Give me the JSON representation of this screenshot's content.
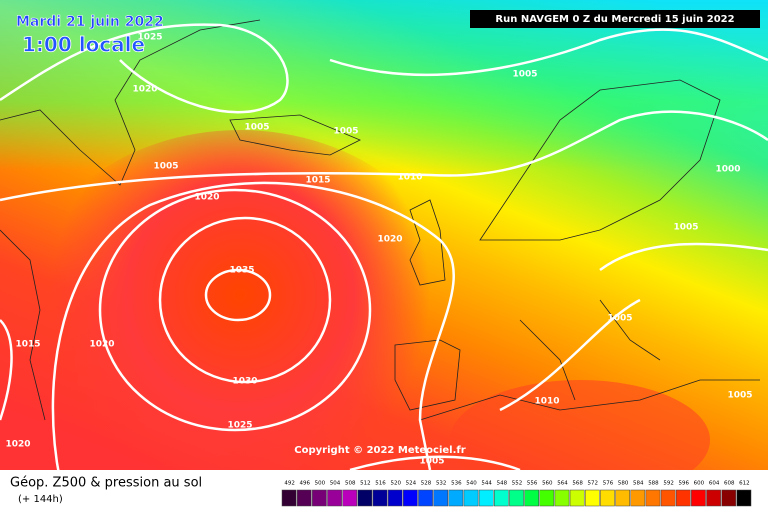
{
  "header": {
    "date": "Mardi 21 juin 2022",
    "time": "1:00 locale",
    "run": "Run NAVGEM 0 Z du Mercredi 15 juin 2022"
  },
  "isobar_labels": [
    "1025",
    "1020",
    "1005",
    "1005",
    "1005",
    "1015",
    "1010",
    "1020",
    "1020",
    "1035",
    "1015",
    "1020",
    "1030",
    "1025",
    "1020",
    "1005",
    "1010",
    "1005",
    "1005",
    "1000",
    "1005",
    "1005"
  ],
  "copyright": "Copyright © 2022 Meteociel.fr",
  "footer": {
    "title": "Géop. Z500 & pression au sol",
    "lead": "(+ 144h)"
  },
  "legend": [
    {
      "label": 492,
      "color": "#330033"
    },
    {
      "label": 496,
      "color": "#550055"
    },
    {
      "label": 500,
      "color": "#770077"
    },
    {
      "label": 504,
      "color": "#990099"
    },
    {
      "label": 508,
      "color": "#bb00bb"
    },
    {
      "label": 512,
      "color": "#000066"
    },
    {
      "label": 516,
      "color": "#000099"
    },
    {
      "label": 520,
      "color": "#0000cc"
    },
    {
      "label": 524,
      "color": "#0000ff"
    },
    {
      "label": 528,
      "color": "#0044ff"
    },
    {
      "label": 532,
      "color": "#0077ff"
    },
    {
      "label": 536,
      "color": "#00aaff"
    },
    {
      "label": 540,
      "color": "#00ccff"
    },
    {
      "label": 544,
      "color": "#00eeff"
    },
    {
      "label": 548,
      "color": "#00ffcc"
    },
    {
      "label": 552,
      "color": "#00ff88"
    },
    {
      "label": 556,
      "color": "#00ff44"
    },
    {
      "label": 560,
      "color": "#44ff00"
    },
    {
      "label": 564,
      "color": "#88ff00"
    },
    {
      "label": 568,
      "color": "#ccff00"
    },
    {
      "label": 572,
      "color": "#ffff00"
    },
    {
      "label": 576,
      "color": "#ffdd00"
    },
    {
      "label": 580,
      "color": "#ffbb00"
    },
    {
      "label": 584,
      "color": "#ff9900"
    },
    {
      "label": 588,
      "color": "#ff7700"
    },
    {
      "label": 592,
      "color": "#ff5500"
    },
    {
      "label": 596,
      "color": "#ff3300"
    },
    {
      "label": 600,
      "color": "#ff0000"
    },
    {
      "label": 604,
      "color": "#cc0000"
    },
    {
      "label": 608,
      "color": "#880000"
    },
    {
      "label": 612,
      "color": "#000000"
    }
  ]
}
